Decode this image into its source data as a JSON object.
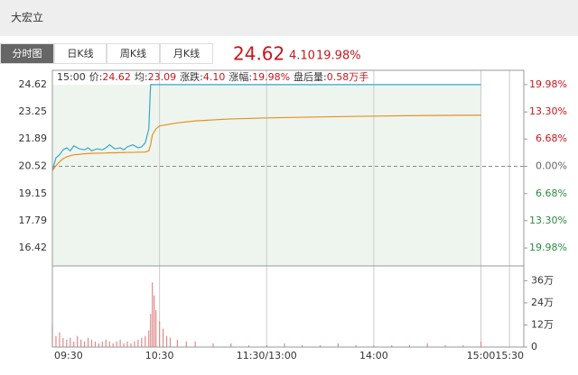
{
  "header": {
    "name": "大宏立"
  },
  "tabs": [
    "分时图",
    "日K线",
    "周K线",
    "月K线"
  ],
  "quote": {
    "price": "24.62",
    "change": "4.10",
    "percent": "19.98%"
  },
  "info": [
    {
      "label": "15:00",
      "value": ""
    },
    {
      "label": "价:",
      "value": "24.62"
    },
    {
      "label": "均:",
      "value": "23.09"
    },
    {
      "label": "涨跌:",
      "value": "4.10"
    },
    {
      "label": "涨幅:",
      "value": "19.98%"
    },
    {
      "label": "盘后量:",
      "value": "0.58万手"
    }
  ],
  "chart_data": [
    {
      "type": "line",
      "x": [
        0,
        2,
        4,
        6,
        8,
        10,
        12,
        15,
        18,
        20,
        22,
        25,
        28,
        30,
        32,
        35,
        38,
        40,
        42,
        45,
        48,
        50,
        52,
        54,
        55,
        56,
        58,
        60,
        70,
        80,
        100,
        120,
        150,
        180,
        210,
        240
      ],
      "series": [
        {
          "color": "#3aa6c8",
          "values": [
            20.3,
            20.95,
            21.1,
            21.35,
            21.45,
            21.3,
            21.55,
            21.4,
            21.35,
            21.45,
            21.3,
            21.4,
            21.35,
            21.45,
            21.6,
            21.4,
            21.45,
            21.35,
            21.5,
            21.6,
            21.45,
            21.5,
            21.7,
            22.4,
            24.62,
            24.62,
            24.62,
            24.62,
            24.62,
            24.62,
            24.62,
            24.62,
            24.62,
            24.62,
            24.62,
            24.62
          ]
        },
        {
          "color": "#e8901c",
          "values": [
            20.3,
            20.55,
            20.75,
            20.9,
            21.0,
            21.05,
            21.1,
            21.12,
            21.15,
            21.16,
            21.17,
            21.18,
            21.18,
            21.19,
            21.2,
            21.2,
            21.21,
            21.21,
            21.22,
            21.22,
            21.23,
            21.23,
            21.24,
            21.3,
            21.6,
            22.1,
            22.4,
            22.55,
            22.7,
            22.8,
            22.9,
            22.95,
            23.0,
            23.04,
            23.07,
            23.09
          ]
        }
      ],
      "xlim": [
        0,
        264
      ],
      "xticks": [
        {
          "value": 0,
          "label": "09:30"
        },
        {
          "value": 60,
          "label": "10:30"
        },
        {
          "value": 120,
          "label": "11:30/13:00"
        },
        {
          "value": 180,
          "label": "14:00"
        },
        {
          "value": 240,
          "label": "15:00"
        },
        {
          "value": 256,
          "label": "15:30"
        }
      ],
      "ylim": [
        15.52,
        25.34
      ],
      "yticks": [
        24.62,
        23.25,
        21.89,
        20.52,
        19.15,
        17.79,
        16.42
      ],
      "y2lim": [
        -24.37,
        23.49
      ],
      "y2ticks": [
        {
          "value": 19.98,
          "label": "19.98%"
        },
        {
          "value": 13.3,
          "label": "13.30%"
        },
        {
          "value": 6.68,
          "label": "6.68%"
        },
        {
          "value": 0,
          "label": "0.00%"
        },
        {
          "value": -6.68,
          "label": "6.68%"
        },
        {
          "value": -13.3,
          "label": "13.30%"
        },
        {
          "value": -19.98,
          "label": "19.98%"
        }
      ]
    },
    {
      "type": "bar",
      "color": "#e08a8a",
      "x": [
        0,
        2,
        4,
        6,
        8,
        10,
        12,
        14,
        16,
        18,
        20,
        22,
        24,
        26,
        28,
        30,
        32,
        34,
        36,
        38,
        40,
        42,
        44,
        46,
        48,
        50,
        52,
        54,
        55,
        56,
        57,
        58,
        60,
        62,
        64,
        66,
        70,
        75,
        80,
        90,
        100,
        110,
        120,
        130,
        140,
        150,
        160,
        170,
        180,
        190,
        200,
        210,
        220,
        230,
        240
      ],
      "values": [
        12,
        6,
        8,
        5,
        4,
        5,
        3,
        6,
        4,
        3,
        5,
        4,
        3,
        2,
        3,
        4,
        3,
        2,
        3,
        4,
        2,
        3,
        2,
        3,
        4,
        5,
        6,
        9,
        18,
        35,
        28,
        20,
        14,
        10,
        6,
        5,
        4,
        3,
        3,
        2,
        2,
        1,
        1,
        2,
        1,
        1,
        2,
        1,
        1,
        1,
        1,
        2,
        1,
        1,
        3
      ],
      "ylim": [
        0,
        44
      ],
      "yticks": [
        0,
        {
          "value": 12,
          "label": "12万"
        },
        {
          "value": 24,
          "label": "24万"
        },
        {
          "value": 36,
          "label": "36万"
        }
      ]
    }
  ]
}
